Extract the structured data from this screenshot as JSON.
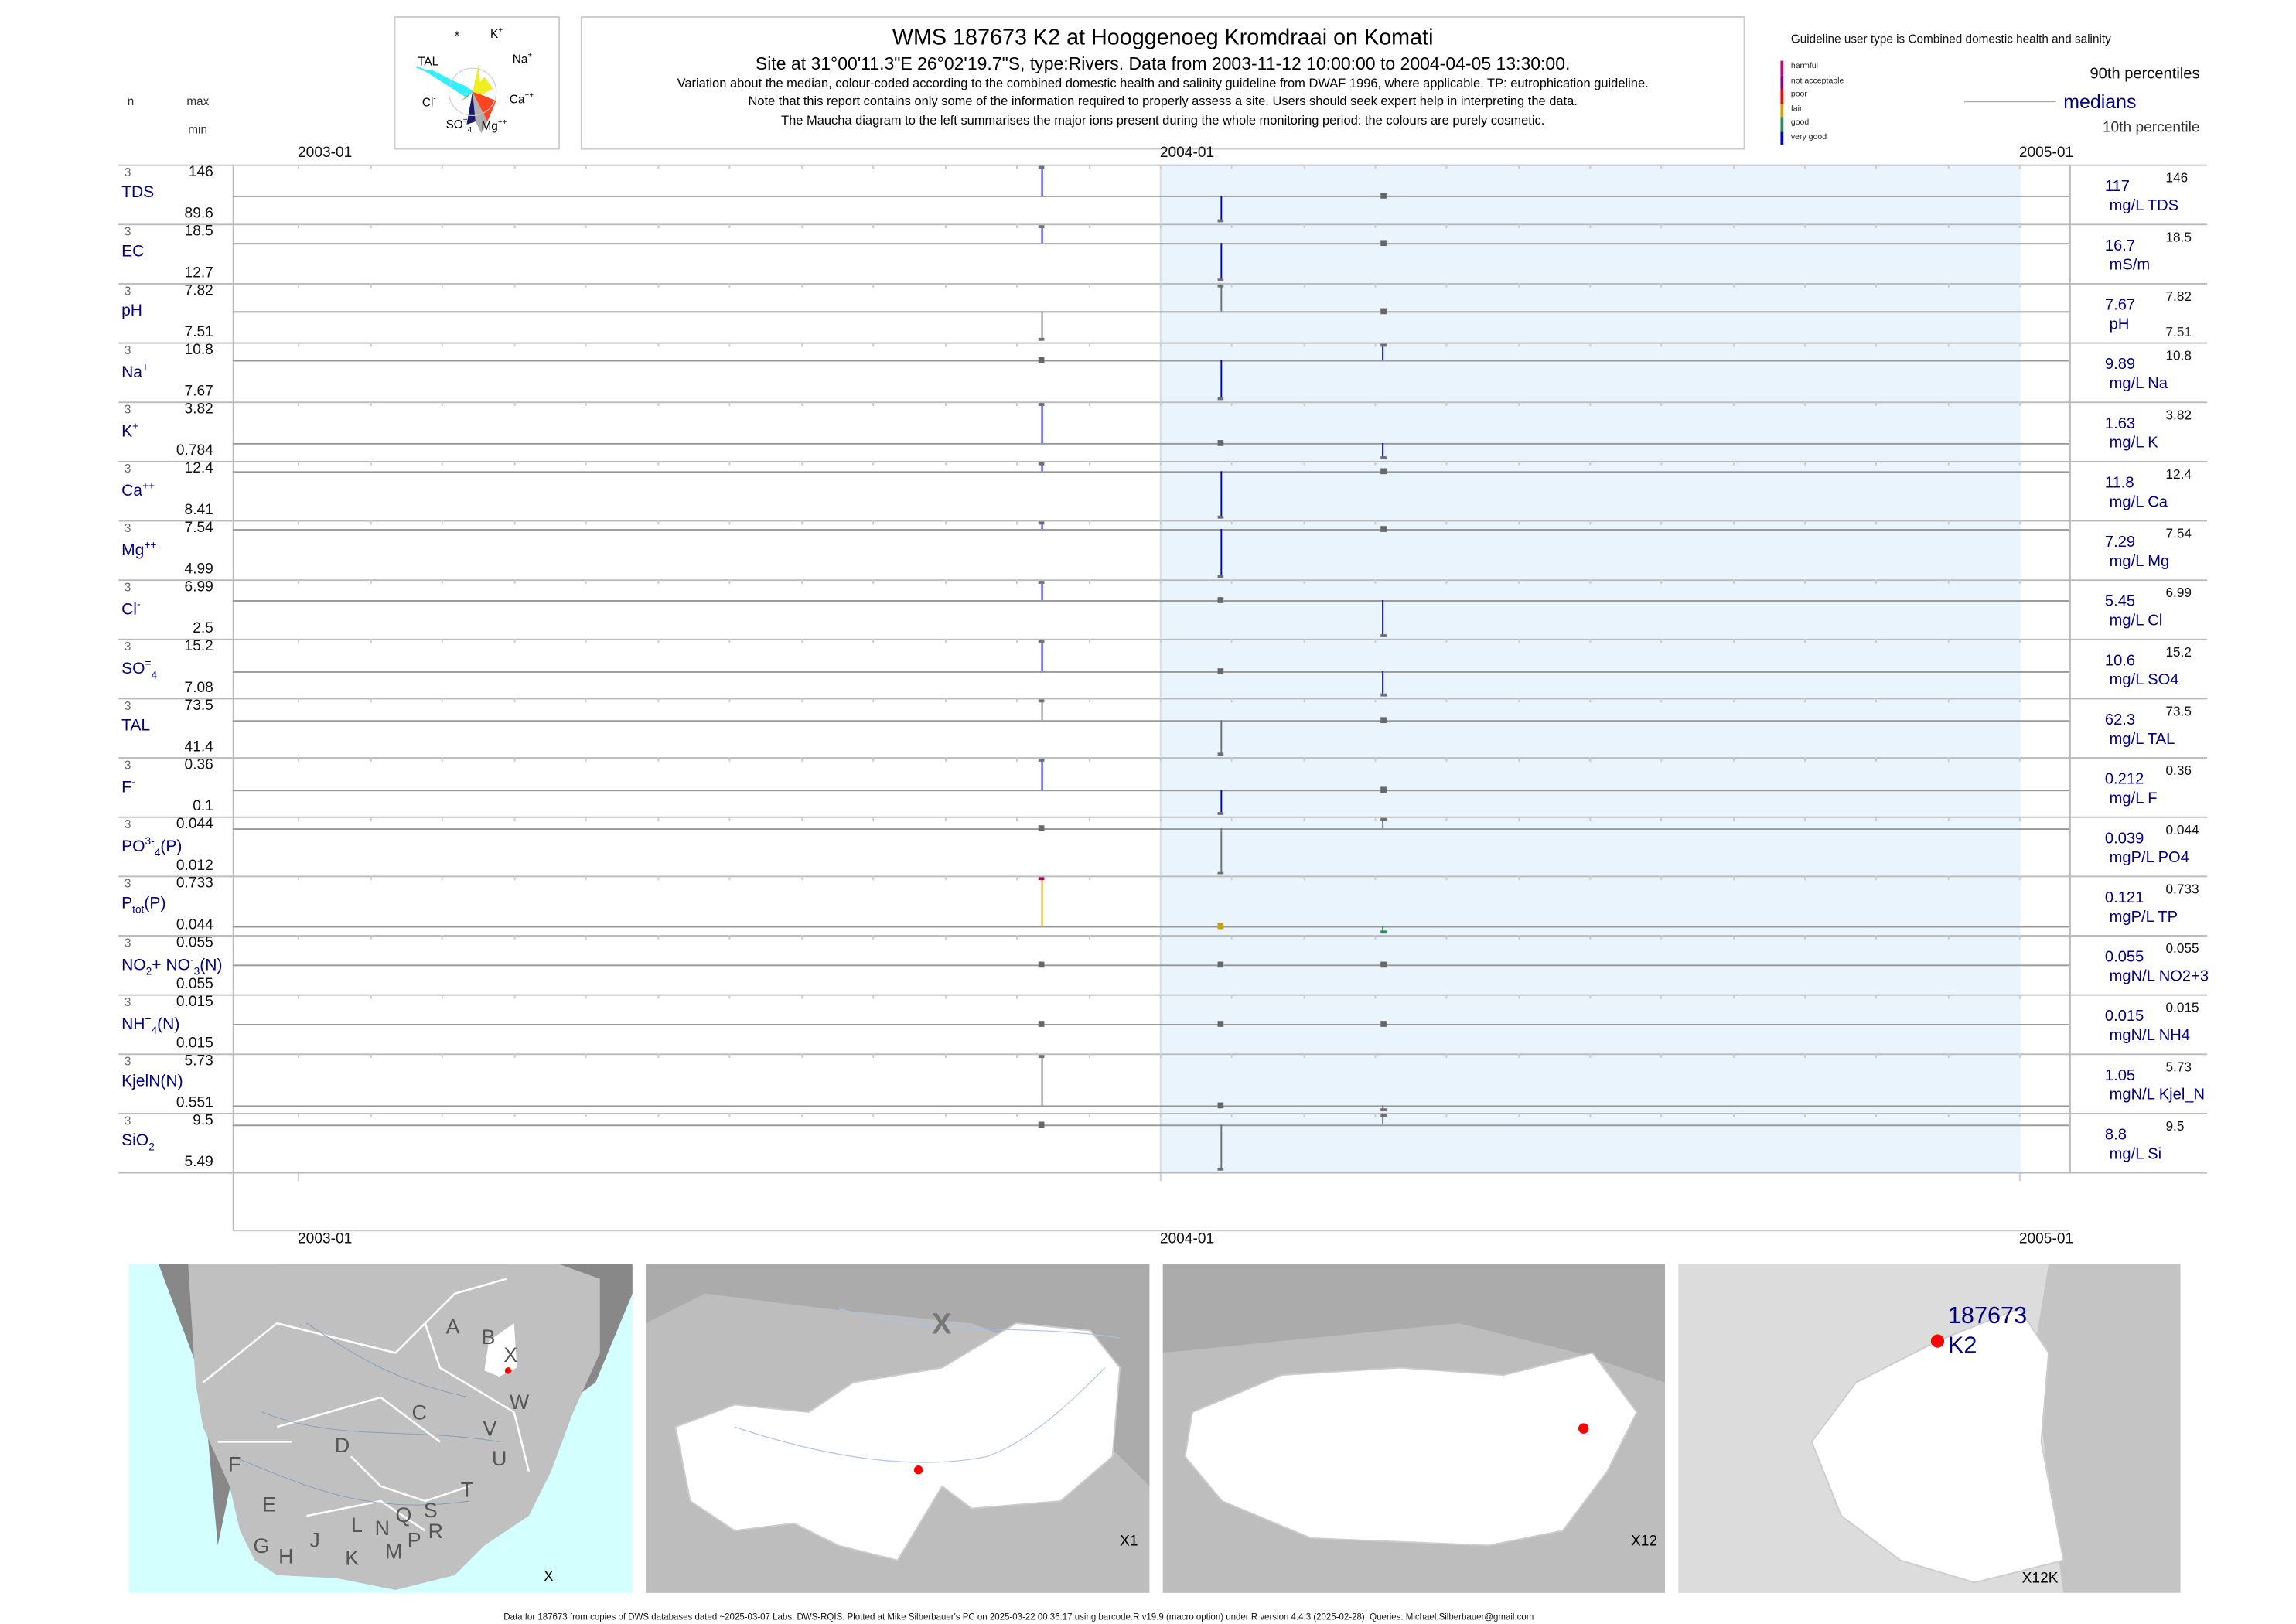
{
  "header": {
    "title": "WMS 187673 K2 at Hooggenoeg Kromdraai on Komati",
    "subtitle": "Site at 31°00'11.3\"E 26°02'19.7\"S, type:Rivers.  Data from 2003-11-12 10:00:00 to 2004-04-05 13:30:00.",
    "note1": "Variation about the median,  colour-coded according to the combined domestic health and salinity guideline from DWAF 1996, where applicable. TP: eutrophication guideline.",
    "note2": "Note that this report contains only some of the information required to properly assess a site. Users should seek expert help in interpreting the data.",
    "note3": "The Maucha diagram to the left summarises the major ions present during the whole monitoring period: the colours are purely cosmetic."
  },
  "maucha": {
    "labels": [
      "*",
      "K",
      "TAL",
      "Na",
      "Cl",
      "Ca",
      "SO",
      "Mg"
    ],
    "label_sups": [
      "",
      "+",
      "",
      "+",
      "-",
      "++",
      "=",
      "++"
    ],
    "label_subs": [
      "",
      "",
      "",
      "",
      "",
      "",
      "4",
      ""
    ],
    "colors": {
      "TAL": "#33eeff",
      "Na": "#eeee22",
      "Ca": "#ff4422",
      "Mg": "#b0b0b0",
      "SO4": "#1a1a6a",
      "Cl": "#88aa33",
      "K": "#ffffff"
    }
  },
  "legend": {
    "guideline_title": "Guideline user type is Combined domestic health and salinity",
    "classes": [
      {
        "label": "harmful",
        "color": "#cc0077"
      },
      {
        "label": "not acceptable",
        "color": "#880088"
      },
      {
        "label": "poor",
        "color": "#ff0000"
      },
      {
        "label": "fair",
        "color": "#d4a000"
      },
      {
        "label": "good",
        "color": "#2e8b57"
      },
      {
        "label": "very good",
        "color": "#0000cc"
      }
    ],
    "p90": "90th percentiles",
    "median": "medians",
    "p10": "10th percentile"
  },
  "left_header": {
    "n": "n",
    "max": "max",
    "min": "min"
  },
  "chart_data": {
    "type": "line",
    "x_ticks": [
      "2003-01",
      "2004-01",
      "2005-01"
    ],
    "x_range": [
      "2003-01-01",
      "2005-01-01"
    ],
    "shaded_period": [
      "2004-01-01",
      "2005-01-01"
    ],
    "sample_dates": [
      "2003-11-12",
      "2004-01-27",
      "2004-04-05"
    ],
    "segment_colors": {
      "very good": "#0000cc",
      "good": "#2e8b57",
      "fair": "#c8a000",
      "harmful": "#b0006e",
      "none": "#707070"
    },
    "panels": [
      {
        "label": [
          {
            "t": "TDS"
          }
        ],
        "n": "3",
        "max": "146",
        "min": "89.6",
        "median": "117",
        "unit": "mg/L TDS",
        "values": [
          146,
          89.6,
          117
        ],
        "classes": [
          "very good",
          "very good",
          "none"
        ]
      },
      {
        "label": [
          {
            "t": "EC"
          }
        ],
        "n": "3",
        "max": "18.5",
        "min": "12.7",
        "median": "16.7",
        "unit": "mS/m",
        "values": [
          18.5,
          12.7,
          16.7
        ],
        "classes": [
          "very good",
          "very good",
          "none"
        ]
      },
      {
        "label": [
          {
            "t": "pH"
          }
        ],
        "n": "3",
        "max": "7.82",
        "min": "7.51",
        "median": "7.67",
        "unit": "pH",
        "right_min": "7.51",
        "values": [
          7.51,
          7.82,
          7.67
        ],
        "classes": [
          "none",
          "none",
          "none"
        ]
      },
      {
        "label": [
          {
            "t": "Na"
          },
          {
            "sup": "+"
          }
        ],
        "n": "3",
        "max": "10.8",
        "min": "7.67",
        "median": "9.89",
        "unit": "mg/L Na",
        "values": [
          9.89,
          7.67,
          10.8
        ],
        "classes": [
          "none",
          "very good",
          "very good"
        ]
      },
      {
        "label": [
          {
            "t": "K"
          },
          {
            "sup": "+"
          }
        ],
        "n": "3",
        "max": "3.82",
        "min": "0.784",
        "median": "1.63",
        "unit": "mg/L K",
        "values": [
          3.82,
          1.63,
          0.784
        ],
        "classes": [
          "very good",
          "none",
          "very good"
        ]
      },
      {
        "label": [
          {
            "t": "Ca"
          },
          {
            "sup": "++"
          }
        ],
        "n": "3",
        "max": "12.4",
        "min": "8.41",
        "median": "11.8",
        "unit": "mg/L Ca",
        "values": [
          12.4,
          8.41,
          11.8
        ],
        "classes": [
          "very good",
          "very good",
          "none"
        ]
      },
      {
        "label": [
          {
            "t": "Mg"
          },
          {
            "sup": "++"
          }
        ],
        "n": "3",
        "max": "7.54",
        "min": "4.99",
        "median": "7.29",
        "unit": "mg/L Mg",
        "values": [
          7.54,
          4.99,
          7.29
        ],
        "classes": [
          "very good",
          "very good",
          "none"
        ]
      },
      {
        "label": [
          {
            "t": "Cl"
          },
          {
            "sup": "-"
          }
        ],
        "n": "3",
        "max": "6.99",
        "min": "2.5",
        "median": "5.45",
        "unit": "mg/L Cl",
        "values": [
          6.99,
          5.45,
          2.5
        ],
        "classes": [
          "very good",
          "none",
          "very good"
        ]
      },
      {
        "label": [
          {
            "t": "SO"
          },
          {
            "sup": "="
          },
          {
            "sub": "4"
          }
        ],
        "n": "3",
        "max": "15.2",
        "min": "7.08",
        "median": "10.6",
        "unit": "mg/L SO4",
        "values": [
          15.2,
          10.6,
          7.08
        ],
        "classes": [
          "very good",
          "none",
          "very good"
        ]
      },
      {
        "label": [
          {
            "t": "TAL"
          }
        ],
        "n": "3",
        "max": "73.5",
        "min": "41.4",
        "median": "62.3",
        "unit": "mg/L TAL",
        "values": [
          73.5,
          41.4,
          62.3
        ],
        "classes": [
          "none",
          "none",
          "none"
        ]
      },
      {
        "label": [
          {
            "t": "F"
          },
          {
            "sup": "-"
          }
        ],
        "n": "3",
        "max": "0.36",
        "min": "0.1",
        "median": "0.212",
        "unit": "mg/L F",
        "values": [
          0.36,
          0.1,
          0.212
        ],
        "classes": [
          "very good",
          "very good",
          "none"
        ]
      },
      {
        "label": [
          {
            "t": "PO"
          },
          {
            "sup": "3-"
          },
          {
            "sub": "4"
          },
          {
            "t": "(P)"
          }
        ],
        "n": "3",
        "max": "0.044",
        "min": "0.012",
        "median": "0.039",
        "unit": "mgP/L PO4",
        "values": [
          0.039,
          0.012,
          0.044
        ],
        "classes": [
          "none",
          "none",
          "none"
        ]
      },
      {
        "label": [
          {
            "t": "P"
          },
          {
            "sub": "tot"
          },
          {
            "t": "(P)"
          }
        ],
        "n": "3",
        "max": "0.733",
        "min": "0.044",
        "median": "0.121",
        "unit": "mgP/L TP",
        "values": [
          0.733,
          0.121,
          0.044
        ],
        "classes": [
          "fair",
          "fair",
          "good"
        ],
        "cap_classes": [
          "harmful",
          "fair",
          "good"
        ]
      },
      {
        "label": [
          {
            "t": "NO"
          },
          {
            "sub": "2"
          },
          {
            "t": "+ NO"
          },
          {
            "sup": "-"
          },
          {
            "sub": "3"
          },
          {
            "t": "(N)"
          }
        ],
        "n": "3",
        "max": "0.055",
        "min": "0.055",
        "median": "0.055",
        "unit": "mgN/L NO2+3",
        "values": [
          0.055,
          0.055,
          0.055
        ],
        "classes": [
          "none",
          "none",
          "none"
        ]
      },
      {
        "label": [
          {
            "t": "NH"
          },
          {
            "sup": "+"
          },
          {
            "sub": "4"
          },
          {
            "t": "(N)"
          }
        ],
        "n": "3",
        "max": "0.015",
        "min": "0.015",
        "median": "0.015",
        "unit": "mgN/L NH4",
        "values": [
          0.015,
          0.015,
          0.015
        ],
        "classes": [
          "none",
          "none",
          "none"
        ]
      },
      {
        "label": [
          {
            "t": "KjelN(N)"
          }
        ],
        "n": "3",
        "max": "5.73",
        "min": "0.551",
        "median": "1.05",
        "unit": "mgN/L Kjel_N",
        "values": [
          5.73,
          1.05,
          0.551
        ],
        "classes": [
          "none",
          "none",
          "none"
        ]
      },
      {
        "label": [
          {
            "t": "SiO"
          },
          {
            "sub": "2"
          }
        ],
        "n": "3",
        "max": "9.5",
        "min": "5.49",
        "median": "8.8",
        "unit": "mg/L Si",
        "values": [
          8.8,
          5.49,
          9.5
        ],
        "classes": [
          "none",
          "none",
          "none"
        ]
      }
    ]
  },
  "maps": {
    "map1": {
      "regions": [
        "A",
        "B",
        "X",
        "W",
        "C",
        "D",
        "V",
        "U",
        "F",
        "T",
        "E",
        "S",
        "Q",
        "N",
        "L",
        "R",
        "G",
        "J",
        "P",
        "H",
        "K",
        "M"
      ],
      "caption": "X"
    },
    "map2": {
      "region_label": "X",
      "caption": "X1"
    },
    "map3": {
      "caption": "X12"
    },
    "map4": {
      "site_id": "187673",
      "site_code": "K2",
      "caption": "X12K"
    },
    "site_color": "#ff0000"
  },
  "footer": "Data for 187673 from copies of DWS databases dated ~2025-03-07 Labs: DWS-RQIS. Plotted at Mike Silberbauer's PC on 2025-03-22 00:36:17 using barcode.R v19.9 (macro option) under R version 4.4.3 (2025-02-28). Queries: Michael.Silberbauer@gmail.com"
}
